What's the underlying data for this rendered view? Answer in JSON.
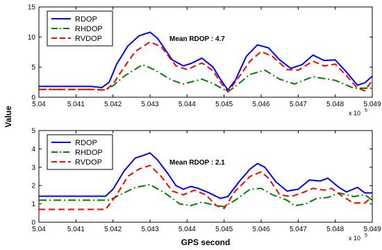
{
  "chart_data": [
    {
      "type": "line",
      "annotation": "Mean RDOP : 4.7",
      "xlim": [
        5.04,
        5.049
      ],
      "ylim": [
        0,
        15
      ],
      "x_ticks": [
        "5.04",
        "5.041",
        "5.042",
        "5.043",
        "5.044",
        "5.045",
        "5.046",
        "5.047",
        "5.048",
        "5.049"
      ],
      "y_ticks": [
        "0",
        "5",
        "10",
        "15"
      ],
      "x_multiplier": "x 10",
      "x_multiplier_exp": "5",
      "legend_position": "top-left",
      "grid": false,
      "series": [
        {
          "name": "RDOP",
          "color": "#0000ff",
          "dash": "solid",
          "points": [
            [
              5.04,
              1.8
            ],
            [
              5.041,
              1.8
            ],
            [
              5.0414,
              1.8
            ],
            [
              5.0417,
              1.6
            ],
            [
              5.0419,
              2.5
            ],
            [
              5.0421,
              5.5
            ],
            [
              5.0424,
              8.5
            ],
            [
              5.0427,
              10.2
            ],
            [
              5.043,
              10.8
            ],
            [
              5.0432,
              9.8
            ],
            [
              5.0436,
              6.2
            ],
            [
              5.0439,
              5.2
            ],
            [
              5.0441,
              5.6
            ],
            [
              5.0444,
              6.5
            ],
            [
              5.0447,
              5.0
            ],
            [
              5.0449,
              3.0
            ],
            [
              5.0451,
              1.2
            ],
            [
              5.0453,
              2.8
            ],
            [
              5.0456,
              6.8
            ],
            [
              5.0459,
              8.7
            ],
            [
              5.0462,
              8.2
            ],
            [
              5.0465,
              6.2
            ],
            [
              5.0468,
              4.8
            ],
            [
              5.0471,
              5.4
            ],
            [
              5.0474,
              7.0
            ],
            [
              5.0477,
              6.1
            ],
            [
              5.048,
              6.2
            ],
            [
              5.0483,
              4.2
            ],
            [
              5.0486,
              2.0
            ],
            [
              5.0488,
              2.4
            ],
            [
              5.049,
              3.5
            ]
          ]
        },
        {
          "name": "RHDOP",
          "color": "#008000",
          "dash": "dashdot",
          "points": [
            [
              5.04,
              1.3
            ],
            [
              5.041,
              1.3
            ],
            [
              5.0414,
              1.3
            ],
            [
              5.0418,
              1.2
            ],
            [
              5.042,
              1.9
            ],
            [
              5.0423,
              3.5
            ],
            [
              5.0428,
              5.4
            ],
            [
              5.0431,
              4.6
            ],
            [
              5.0436,
              2.8
            ],
            [
              5.0439,
              2.2
            ],
            [
              5.0444,
              3.0
            ],
            [
              5.0447,
              2.3
            ],
            [
              5.0449,
              1.6
            ],
            [
              5.0451,
              0.9
            ],
            [
              5.0453,
              1.8
            ],
            [
              5.0457,
              3.8
            ],
            [
              5.0461,
              4.5
            ],
            [
              5.0465,
              3.0
            ],
            [
              5.0469,
              2.2
            ],
            [
              5.0474,
              3.4
            ],
            [
              5.0477,
              3.1
            ],
            [
              5.048,
              2.8
            ],
            [
              5.0485,
              1.5
            ],
            [
              5.049,
              1.5
            ]
          ]
        },
        {
          "name": "RVDOP",
          "color": "#ff0000",
          "dash": "dash",
          "points": [
            [
              5.04,
              1.3
            ],
            [
              5.041,
              1.3
            ],
            [
              5.0414,
              1.3
            ],
            [
              5.0418,
              1.2
            ],
            [
              5.042,
              2.2
            ],
            [
              5.0423,
              5.0
            ],
            [
              5.0426,
              7.6
            ],
            [
              5.043,
              9.2
            ],
            [
              5.0433,
              8.4
            ],
            [
              5.0437,
              5.2
            ],
            [
              5.044,
              4.6
            ],
            [
              5.0444,
              5.7
            ],
            [
              5.0447,
              4.4
            ],
            [
              5.0449,
              2.5
            ],
            [
              5.0451,
              0.9
            ],
            [
              5.0453,
              2.5
            ],
            [
              5.0457,
              6.0
            ],
            [
              5.046,
              7.6
            ],
            [
              5.0463,
              6.8
            ],
            [
              5.0467,
              4.6
            ],
            [
              5.047,
              4.5
            ],
            [
              5.0474,
              6.0
            ],
            [
              5.0477,
              5.2
            ],
            [
              5.048,
              5.5
            ],
            [
              5.0483,
              3.6
            ],
            [
              5.0486,
              1.5
            ],
            [
              5.0488,
              1.1
            ],
            [
              5.049,
              2.8
            ]
          ]
        }
      ]
    },
    {
      "type": "line",
      "annotation": "Mean RDOP : 2.1",
      "xlabel": "GPS second",
      "xlim": [
        5.04,
        5.049
      ],
      "ylim": [
        0,
        5
      ],
      "x_ticks": [
        "5.04",
        "5.041",
        "5.042",
        "5.043",
        "5.044",
        "5.045",
        "5.046",
        "5.047",
        "5.048",
        "5.049"
      ],
      "y_ticks": [
        "0",
        "1",
        "2",
        "3",
        "4",
        "5"
      ],
      "x_multiplier": "x 10",
      "x_multiplier_exp": "5",
      "legend_position": "top-left",
      "grid": false,
      "series": [
        {
          "name": "RDOP",
          "color": "#0000ff",
          "dash": "solid",
          "points": [
            [
              5.04,
              1.42
            ],
            [
              5.041,
              1.42
            ],
            [
              5.0418,
              1.42
            ],
            [
              5.042,
              1.8
            ],
            [
              5.0423,
              2.8
            ],
            [
              5.0426,
              3.5
            ],
            [
              5.0429,
              3.7
            ],
            [
              5.043,
              3.78
            ],
            [
              5.0432,
              3.4
            ],
            [
              5.0435,
              2.6
            ],
            [
              5.0437,
              2.0
            ],
            [
              5.0439,
              1.8
            ],
            [
              5.0441,
              1.95
            ],
            [
              5.0443,
              1.85
            ],
            [
              5.0446,
              1.6
            ],
            [
              5.0449,
              1.3
            ],
            [
              5.0451,
              1.4
            ],
            [
              5.0454,
              2.2
            ],
            [
              5.0457,
              2.9
            ],
            [
              5.0459,
              3.2
            ],
            [
              5.0461,
              3.0
            ],
            [
              5.0464,
              2.2
            ],
            [
              5.0467,
              1.7
            ],
            [
              5.047,
              1.8
            ],
            [
              5.0473,
              2.3
            ],
            [
              5.0476,
              2.25
            ],
            [
              5.0478,
              2.4
            ],
            [
              5.0481,
              1.9
            ],
            [
              5.0483,
              1.65
            ],
            [
              5.0486,
              1.9
            ],
            [
              5.0488,
              1.6
            ],
            [
              5.049,
              1.6
            ]
          ]
        },
        {
          "name": "RHDOP",
          "color": "#008000",
          "dash": "dashdot",
          "points": [
            [
              5.04,
              1.2
            ],
            [
              5.041,
              1.2
            ],
            [
              5.0419,
              1.2
            ],
            [
              5.0422,
              1.5
            ],
            [
              5.0426,
              1.9
            ],
            [
              5.043,
              2.05
            ],
            [
              5.0434,
              1.6
            ],
            [
              5.0438,
              1.0
            ],
            [
              5.0441,
              0.9
            ],
            [
              5.0444,
              1.1
            ],
            [
              5.0447,
              0.95
            ],
            [
              5.045,
              0.85
            ],
            [
              5.0453,
              1.2
            ],
            [
              5.0457,
              1.8
            ],
            [
              5.046,
              1.85
            ],
            [
              5.0463,
              1.5
            ],
            [
              5.0467,
              1.2
            ],
            [
              5.0469,
              0.9
            ],
            [
              5.0472,
              1.0
            ],
            [
              5.0475,
              1.3
            ],
            [
              5.0478,
              1.35
            ],
            [
              5.0481,
              1.6
            ],
            [
              5.0485,
              1.4
            ],
            [
              5.0488,
              1.5
            ],
            [
              5.049,
              1.2
            ]
          ]
        },
        {
          "name": "RVDOP",
          "color": "#ff0000",
          "dash": "dash",
          "points": [
            [
              5.04,
              0.7
            ],
            [
              5.041,
              0.7
            ],
            [
              5.0418,
              0.7
            ],
            [
              5.0421,
              1.5
            ],
            [
              5.0424,
              2.5
            ],
            [
              5.0427,
              2.9
            ],
            [
              5.043,
              3.1
            ],
            [
              5.0433,
              2.5
            ],
            [
              5.0436,
              1.7
            ],
            [
              5.0439,
              1.5
            ],
            [
              5.0442,
              1.75
            ],
            [
              5.0445,
              1.5
            ],
            [
              5.0448,
              0.9
            ],
            [
              5.045,
              0.75
            ],
            [
              5.0453,
              1.7
            ],
            [
              5.0457,
              2.5
            ],
            [
              5.046,
              2.75
            ],
            [
              5.0462,
              2.4
            ],
            [
              5.0465,
              1.5
            ],
            [
              5.0468,
              1.4
            ],
            [
              5.0471,
              1.6
            ],
            [
              5.0474,
              1.85
            ],
            [
              5.0477,
              1.75
            ],
            [
              5.0479,
              1.85
            ],
            [
              5.0482,
              1.4
            ],
            [
              5.0485,
              1.05
            ],
            [
              5.0488,
              1.05
            ],
            [
              5.049,
              1.4
            ]
          ]
        }
      ]
    }
  ],
  "shared_ylabel": "Value"
}
